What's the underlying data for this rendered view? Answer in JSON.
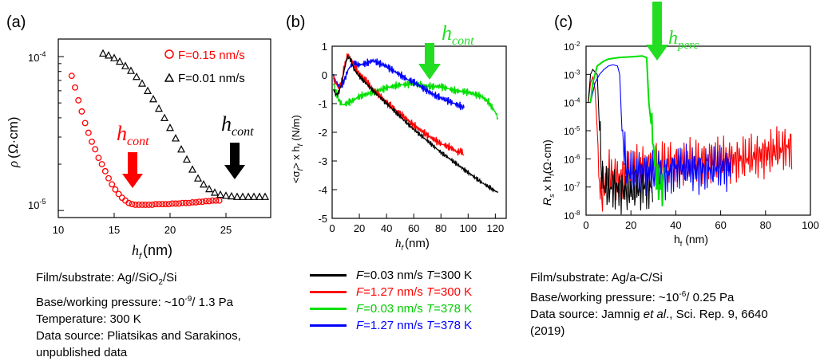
{
  "panels": {
    "a": {
      "label": "(a)",
      "ylabel_sym": "ρ",
      "ylabel_unit": "(Ω·cm)",
      "xlabel_sym": "h",
      "xlabel_sub": "f",
      "xlabel_unit": "(nm)",
      "xticks": [
        "10",
        "15",
        "20",
        "25"
      ],
      "yticks": {
        "top_base": "10",
        "top_exp": "-4",
        "bot_base": "10",
        "bot_exp": "-5"
      },
      "legend": [
        "F=0.15 nm/s",
        "F=0.01 nm/s"
      ],
      "annot_red": {
        "main": "h",
        "sub": "cont"
      },
      "annot_black": {
        "main": "h",
        "sub": "cont"
      }
    },
    "b": {
      "label": "(b)",
      "ylabel": "<σ",
      "ylabel_sub": "f",
      "ylabel_rest": "> x h",
      "ylabel_sub2": "f",
      "ylabel_unit": "(N/m)",
      "xlabel_sym": "h",
      "xlabel_sub": "f",
      "xlabel_unit": "(nm)",
      "xticks": [
        "0",
        "20",
        "40",
        "60",
        "80",
        "100",
        "120"
      ],
      "yticks": [
        "1",
        "0",
        "-1",
        "-2",
        "-3",
        "-4",
        "-5"
      ],
      "annot": {
        "main": "h",
        "sub": "cont"
      }
    },
    "c": {
      "label": "(c)",
      "ylabel_R": "R",
      "ylabel_sub": "s",
      "ylabel_rest": " x h",
      "ylabel_sub2": "f",
      "ylabel_unit": "(Ω·cm)",
      "xlabel": "h",
      "xlabel_sub": "f",
      "xlabel_unit": " (nm)",
      "xticks": [
        "0",
        "20",
        "40",
        "60",
        "80",
        "100"
      ],
      "yticks_exp": [
        "-2",
        "-3",
        "-4",
        "-5",
        "-6",
        "-7",
        "-8"
      ],
      "annot": {
        "main": "h",
        "sub": "perc"
      }
    }
  },
  "captions": {
    "a": [
      "Film/substrate: Ag//SiO",
      "Base/working pressure: ~10",
      "Temperature: 300 K",
      "Data source: Pliatsikas and Sarakinos,",
      "unpublished data"
    ],
    "a_sub": "2",
    "a_tail": "/Si",
    "a_exp": "-9",
    "a_press_tail": "/ 1.3 Pa",
    "c": [
      "Film/substrate: Ag/a-C/Si",
      "Base/working pressure: ~10",
      "Data source: Jamnig ",
      "(2019)"
    ],
    "c_exp": "-6",
    "c_press_tail": "/ 0.25 Pa",
    "c_italic": "et al",
    "c_ref_tail": "., Sci. Rep. 9, 6640"
  },
  "legend_b": [
    {
      "F": "F",
      "eq": "=0.03 nm/s ",
      "T": "T",
      "Teq": "=300 K",
      "color": "#000000"
    },
    {
      "F": "F",
      "eq": "=1.27 nm/s ",
      "T": "T",
      "Teq": "=300 K",
      "color": "#ff0000"
    },
    {
      "F": "F",
      "eq": "=0.03 nm/s ",
      "T": "T",
      "Teq": "=378 K",
      "color": "#00e000"
    },
    {
      "F": "F",
      "eq": "=1.27 nm/s ",
      "T": "T",
      "Teq": "=378 K",
      "color": "#0000ff"
    }
  ],
  "chart_data": [
    {
      "panel": "a",
      "type": "scatter",
      "yscale": "log",
      "xlim": [
        10,
        29
      ],
      "ylim": [
        9e-06,
        0.00013
      ],
      "series": [
        {
          "name": "F=0.15 nm/s",
          "marker": "circle",
          "color": "#ff0000",
          "x": [
            11.2,
            11.5,
            11.8,
            12.1,
            12.4,
            12.7,
            13.0,
            13.3,
            13.6,
            13.9,
            14.2,
            14.5,
            14.8,
            15.1,
            15.4,
            15.7,
            16.0,
            16.3,
            16.6,
            16.9,
            17.2,
            17.5,
            17.8,
            18.1,
            18.4,
            18.7,
            19.0,
            19.3,
            19.6,
            19.9,
            20.2,
            20.5,
            20.8,
            21.1,
            21.4,
            21.7,
            22.0,
            22.3,
            22.6,
            22.9,
            23.2,
            23.5,
            23.8,
            24.1,
            24.4
          ],
          "y": [
            7.5e-05,
            6.3e-05,
            5.2e-05,
            4.4e-05,
            3.7e-05,
            3.2e-05,
            2.8e-05,
            2.5e-05,
            2.2e-05,
            2e-05,
            1.8e-05,
            1.62e-05,
            1.48e-05,
            1.37e-05,
            1.28e-05,
            1.21e-05,
            1.16e-05,
            1.12e-05,
            1.1e-05,
            1.09e-05,
            1.09e-05,
            1.09e-05,
            1.09e-05,
            1.09e-05,
            1.09e-05,
            1.1e-05,
            1.1e-05,
            1.1e-05,
            1.1e-05,
            1.1e-05,
            1.11e-05,
            1.11e-05,
            1.11e-05,
            1.12e-05,
            1.12e-05,
            1.12e-05,
            1.13e-05,
            1.13e-05,
            1.14e-05,
            1.14e-05,
            1.15e-05,
            1.15e-05,
            1.16e-05,
            1.16e-05,
            1.16e-05
          ]
        },
        {
          "name": "F=0.01 nm/s",
          "marker": "triangle",
          "color": "#000000",
          "x": [
            14.0,
            14.5,
            15.0,
            15.5,
            16.0,
            16.5,
            17.0,
            17.5,
            18.0,
            18.5,
            19.0,
            19.5,
            20.0,
            20.5,
            21.0,
            21.5,
            22.0,
            22.5,
            23.0,
            23.5,
            24.0,
            24.5,
            25.0,
            25.5,
            26.0,
            26.5,
            27.0,
            27.5,
            28.0,
            28.5
          ],
          "y": [
            0.000105,
            0.000102,
            9.8e-05,
            9.3e-05,
            8.7e-05,
            8.1e-05,
            7.4e-05,
            6.7e-05,
            6e-05,
            5.3e-05,
            4.6e-05,
            4e-05,
            3.45e-05,
            2.95e-05,
            2.5e-05,
            2.15e-05,
            1.85e-05,
            1.62e-05,
            1.48e-05,
            1.38e-05,
            1.31e-05,
            1.27e-05,
            1.25e-05,
            1.24e-05,
            1.23e-05,
            1.23e-05,
            1.23e-05,
            1.23e-05,
            1.23e-05,
            1.23e-05
          ]
        }
      ]
    },
    {
      "panel": "b",
      "type": "line",
      "xlim": [
        0,
        128
      ],
      "ylim": [
        -5,
        1
      ],
      "series": [
        {
          "name": "F=0.03 nm/s T=300 K",
          "color": "#000000",
          "x": [
            1,
            3,
            5,
            7,
            9,
            11,
            12,
            14,
            16,
            20,
            25,
            30,
            40,
            50,
            60,
            70,
            80,
            90,
            100,
            110,
            120,
            122
          ],
          "y": [
            -0.5,
            -0.7,
            -0.6,
            -0.3,
            0.2,
            0.6,
            0.62,
            0.5,
            0.2,
            -0.05,
            -0.3,
            -0.55,
            -1.0,
            -1.45,
            -1.9,
            -2.3,
            -2.7,
            -3.05,
            -3.4,
            -3.75,
            -4.05,
            -4.1
          ]
        },
        {
          "name": "F=1.27 nm/s T=300 K",
          "color": "#ff0000",
          "x": [
            1,
            3,
            5,
            7,
            9,
            11,
            12,
            14,
            16,
            20,
            25,
            30,
            40,
            50,
            60,
            70,
            80,
            88,
            92,
            95,
            97
          ],
          "y": [
            -0.1,
            -0.3,
            -0.5,
            -0.2,
            0.3,
            0.65,
            0.7,
            0.55,
            0.3,
            0.05,
            -0.2,
            -0.5,
            -0.95,
            -1.35,
            -1.75,
            -2.1,
            -2.4,
            -2.55,
            -2.7,
            -2.65,
            -2.8
          ]
        },
        {
          "name": "F=0.03 nm/s T=378 K",
          "color": "#00e000",
          "x": [
            1,
            3,
            5,
            8,
            10,
            15,
            20,
            30,
            40,
            50,
            60,
            70,
            80,
            90,
            100,
            110,
            115,
            120,
            122
          ],
          "y": [
            -0.3,
            -0.6,
            -0.9,
            -1.05,
            -1.0,
            -0.9,
            -0.75,
            -0.6,
            -0.45,
            -0.35,
            -0.3,
            -0.4,
            -0.4,
            -0.55,
            -0.6,
            -0.75,
            -0.95,
            -1.3,
            -1.5
          ]
        },
        {
          "name": "F=1.27 nm/s T=378 K",
          "color": "#0000ff",
          "x": [
            1,
            3,
            5,
            8,
            12,
            15,
            20,
            25,
            30,
            35,
            40,
            45,
            50,
            55,
            60,
            65,
            70,
            75,
            80,
            85,
            90,
            95,
            97
          ],
          "y": [
            -0.1,
            -0.25,
            -0.4,
            -0.3,
            0.2,
            0.4,
            0.35,
            0.4,
            0.5,
            0.4,
            0.3,
            0.15,
            0.0,
            -0.15,
            -0.25,
            -0.4,
            -0.55,
            -0.7,
            -0.8,
            -0.9,
            -1.0,
            -1.1,
            -1.15
          ]
        }
      ]
    },
    {
      "panel": "c",
      "type": "line",
      "yscale": "log",
      "xlim": [
        0,
        100
      ],
      "ylim": [
        1e-08,
        0.01
      ],
      "series": [
        {
          "name": "",
          "color": "#ff0000",
          "x": [
            1,
            2,
            3,
            4,
            5,
            6,
            7,
            8,
            10,
            15,
            20,
            30,
            40,
            50,
            60,
            70,
            80,
            85,
            90,
            92
          ],
          "y": [
            0.0001,
            0.0005,
            0.0008,
            0.0003,
            1e-05,
            1e-07,
            5e-08,
            1e-07,
            3e-07,
            2e-07,
            4e-07,
            6e-07,
            7e-07,
            8e-07,
            9e-07,
            1e-06,
            1.5e-06,
            2e-06,
            2.5e-06,
            3e-06
          ]
        },
        {
          "name": "",
          "color": "#000000",
          "x": [
            1,
            2,
            3,
            4,
            5,
            6,
            7,
            8,
            9,
            10,
            12,
            15,
            20,
            25,
            30
          ],
          "y": [
            0.0001,
            0.001,
            0.0015,
            0.0012,
            0.001,
            1e-05,
            3e-07,
            1e-07,
            1e-07,
            8e-08,
            1e-07,
            8e-08,
            7e-08,
            1e-07,
            1e-07
          ]
        },
        {
          "name": "",
          "color": "#0000ff",
          "x": [
            2,
            4,
            6,
            8,
            10,
            12,
            14,
            15,
            16,
            18,
            20,
            25,
            30,
            35,
            40,
            50,
            60,
            65
          ],
          "y": [
            0.0001,
            0.0005,
            0.001,
            0.0015,
            0.002,
            0.0022,
            0.002,
            0.001,
            1e-05,
            5e-07,
            3e-07,
            4e-07,
            3e-07,
            2e-07,
            5e-07,
            4e-07,
            5e-07,
            5e-07
          ]
        },
        {
          "name": "",
          "color": "#00e000",
          "x": [
            2,
            3,
            4,
            5,
            8,
            10,
            15,
            20,
            25,
            27,
            28,
            30,
            32,
            34,
            35
          ],
          "y": [
            0.0001,
            0.0005,
            0.001,
            0.002,
            0.003,
            0.0035,
            0.004,
            0.0042,
            0.0045,
            0.004,
            0.0001,
            3e-06,
            1e-07,
            1e-07,
            1e-07
          ]
        }
      ]
    }
  ]
}
